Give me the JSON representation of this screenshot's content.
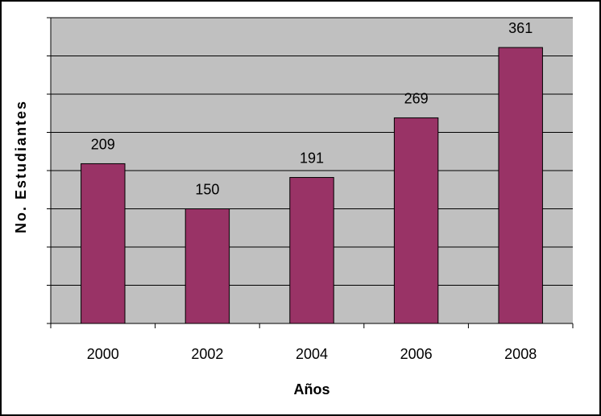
{
  "colors": {
    "plot_background": "#c0c0c0",
    "bar_fill": "#993366",
    "gridline": "#000000",
    "axis": "#000000",
    "frame": "#000000"
  },
  "chart_data": {
    "type": "bar",
    "categories": [
      "2000",
      "2002",
      "2004",
      "2006",
      "2008"
    ],
    "values": [
      209,
      150,
      191,
      269,
      361
    ],
    "data_labels": [
      "209",
      "150",
      "191",
      "269",
      "361"
    ],
    "title": "",
    "xlabel": "Años",
    "ylabel": "No. Estudiantes",
    "ylim": [
      0,
      400
    ],
    "y_grid_step": 50,
    "y_tick_labels_shown": false,
    "grid": true,
    "legend": "none"
  }
}
